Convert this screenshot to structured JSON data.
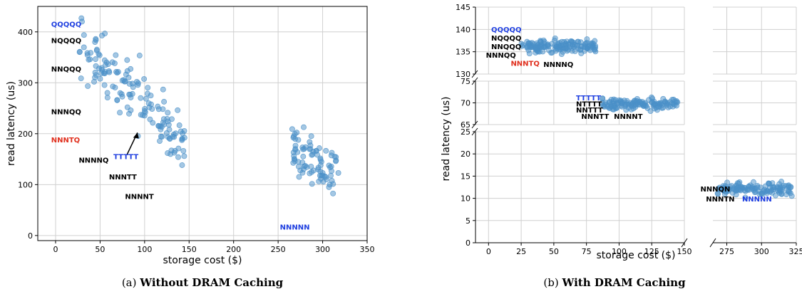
{
  "colors": {
    "point": "#4a90c8",
    "grid": "#d0d0d0",
    "black": "#000000",
    "blue": "#1f3fe0",
    "red": "#e0301e"
  },
  "chart_data": [
    {
      "type": "scatter",
      "xlabel": "storage cost ($)",
      "ylabel": "read latency (us)",
      "xlim": [
        -20,
        350
      ],
      "ylim": [
        -10,
        450
      ],
      "xticks": [
        0,
        50,
        100,
        150,
        200,
        250,
        300,
        350
      ],
      "yticks": [
        0,
        100,
        200,
        300,
        400
      ],
      "grid": true,
      "caption": {
        "prefix": "(a) ",
        "bold": "Without DRAM Caching"
      },
      "labels": [
        {
          "text": "QQQQQ",
          "x": -5,
          "y": 410,
          "color": "blue"
        },
        {
          "text": "NQQQQ",
          "x": -5,
          "y": 378,
          "color": "black"
        },
        {
          "text": "NNQQQ",
          "x": -5,
          "y": 322,
          "color": "black"
        },
        {
          "text": "NNNQQ",
          "x": -5,
          "y": 238,
          "color": "black"
        },
        {
          "text": "NNNTQ",
          "x": -5,
          "y": 183,
          "color": "red"
        },
        {
          "text": "NNNNQ",
          "x": 26,
          "y": 143,
          "color": "black"
        },
        {
          "text": "TTTTT",
          "x": 65,
          "y": 150,
          "color": "blue"
        },
        {
          "text": "NNNTT",
          "x": 60,
          "y": 110,
          "color": "black"
        },
        {
          "text": "NNNNT",
          "x": 78,
          "y": 72,
          "color": "black"
        },
        {
          "text": "NNNNN",
          "x": 252,
          "y": 12,
          "color": "blue"
        }
      ],
      "arrow": {
        "from": [
          80,
          158
        ],
        "to": [
          92,
          202
        ]
      },
      "clusters": [
        {
          "n": 150,
          "seed": 11,
          "xmin": 20,
          "xmax": 145,
          "ycenter_at_xmin": 390,
          "ycenter_at_xmax": 175,
          "yspread": 105
        },
        {
          "n": 85,
          "seed": 23,
          "xmin": 265,
          "xmax": 318,
          "ycenter_at_xmin": 175,
          "ycenter_at_xmax": 120,
          "yspread": 95
        }
      ]
    },
    {
      "type": "scatter",
      "xlabel": "storage cost ($)",
      "ylabel": "read latency (us)",
      "broken_axes": true,
      "xticks_left": [
        0,
        25,
        50,
        75,
        100,
        125,
        150
      ],
      "xticks_right": [
        275,
        300,
        325
      ],
      "yticks_top": [
        130,
        135,
        140,
        145
      ],
      "yticks_mid": [
        65,
        70,
        75
      ],
      "yticks_bottom": [
        0,
        5,
        10,
        15,
        20,
        25
      ],
      "grid": true,
      "caption": {
        "prefix": "(b) ",
        "bold": "With DRAM Caching"
      },
      "labels": [
        {
          "text": "QQQQQ",
          "x": 2,
          "y": 139.4,
          "color": "blue",
          "panel": "top"
        },
        {
          "text": "NQQQQ",
          "x": 2,
          "y": 137.5,
          "color": "black",
          "panel": "top"
        },
        {
          "text": "NNQQQ",
          "x": 2,
          "y": 135.6,
          "color": "black",
          "panel": "top"
        },
        {
          "text": "NNNQQ",
          "x": -2,
          "y": 133.7,
          "color": "black",
          "panel": "top"
        },
        {
          "text": "NNNTQ",
          "x": 17,
          "y": 131.8,
          "color": "red",
          "panel": "top"
        },
        {
          "text": "NNNNQ",
          "x": 42,
          "y": 131.6,
          "color": "black",
          "panel": "top"
        },
        {
          "text": "TTTTT",
          "x": 67,
          "y": 70.6,
          "color": "blue",
          "panel": "mid"
        },
        {
          "text": "NTTTT",
          "x": 67,
          "y": 69.2,
          "color": "black",
          "panel": "mid"
        },
        {
          "text": "NNTTT",
          "x": 67,
          "y": 67.8,
          "color": "black",
          "panel": "mid"
        },
        {
          "text": "NNNTT",
          "x": 71,
          "y": 66.3,
          "color": "black",
          "panel": "mid"
        },
        {
          "text": "NNNNT",
          "x": 96,
          "y": 66.3,
          "color": "black",
          "panel": "mid"
        },
        {
          "text": "NNNQN",
          "x": 256,
          "y": 11.5,
          "color": "black",
          "panel": "bottom"
        },
        {
          "text": "NNNTN",
          "x": 260,
          "y": 9.3,
          "color": "black",
          "panel": "bottom"
        },
        {
          "text": "NNNNN",
          "x": 286,
          "y": 9.3,
          "color": "blue",
          "panel": "bottom"
        }
      ],
      "clusters": [
        {
          "panel": "top",
          "n": 150,
          "seed": 31,
          "xmin": 25,
          "xmax": 82,
          "ymin": 133.5,
          "ymax": 139
        },
        {
          "panel": "mid",
          "n": 130,
          "seed": 47,
          "xmin": 87,
          "xmax": 145,
          "ymin": 67,
          "ymax": 72.5
        },
        {
          "panel": "bottom",
          "n": 130,
          "seed": 59,
          "xmin": 268,
          "xmax": 322,
          "ymin": 9.5,
          "ymax": 15
        }
      ]
    }
  ]
}
